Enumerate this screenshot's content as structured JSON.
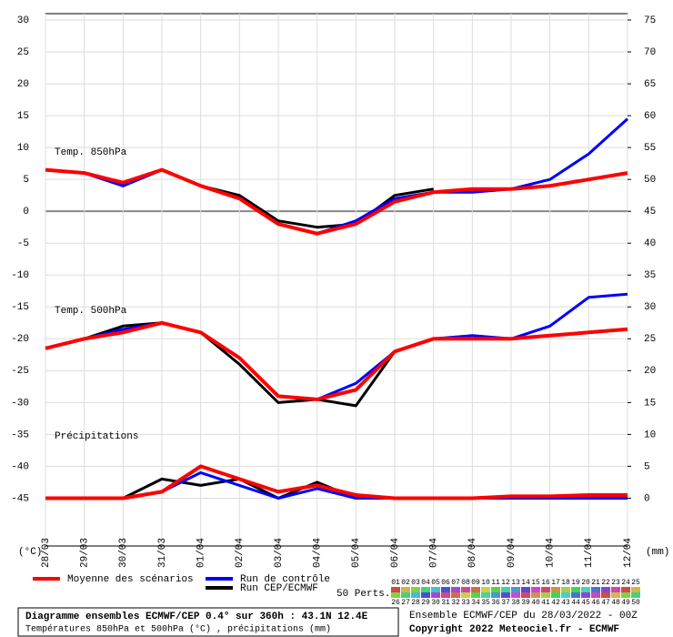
{
  "chart_data": {
    "type": "line",
    "panels": [
      "Temp. 850hPa",
      "Temp. 500hPa",
      "Précipitations"
    ],
    "x": [
      "28/03",
      "29/03",
      "30/03",
      "31/03",
      "01/04",
      "02/04",
      "03/04",
      "04/04",
      "05/04",
      "06/04",
      "07/04",
      "08/04",
      "09/04",
      "10/04",
      "11/04",
      "12/04"
    ],
    "ylim": [
      -52.5,
      31
    ],
    "yticks": [
      -45,
      -40,
      -35,
      -30,
      -25,
      -20,
      -15,
      -10,
      -5,
      0,
      5,
      10,
      15,
      20,
      25,
      30
    ],
    "y2lim": [
      -7.5,
      76
    ],
    "y2ticks": [
      0,
      5,
      10,
      15,
      20,
      25,
      30,
      35,
      40,
      45,
      50,
      55,
      60,
      65,
      70,
      75
    ],
    "ylabel": "(°C)",
    "y2label": "(mm)",
    "grid": true,
    "series": [
      {
        "name": "Moyenne des scénarios",
        "color": "#ff0000",
        "values850": [
          6.5,
          6,
          4.5,
          6.5,
          4,
          2,
          -2,
          -3.5,
          -2,
          1.5,
          3,
          3.5,
          3.5,
          4,
          5,
          6
        ],
        "values500": [
          -21.5,
          -20,
          -19,
          -17.5,
          -19,
          -23,
          -29,
          -29.5,
          -28,
          -22,
          -20,
          -20,
          -20,
          -19.5,
          -19,
          -18.5
        ],
        "precip": [
          0,
          0,
          0,
          1,
          5,
          3,
          1,
          2,
          0.5,
          0,
          0,
          0,
          0.3,
          0.3,
          0.5,
          0.5
        ],
        "axis_precip": "y2"
      },
      {
        "name": "Run de contrôle",
        "color": "#0000ff",
        "values850": [
          6.5,
          6,
          4,
          6.5,
          4,
          2,
          -2,
          -3.5,
          -1.5,
          2,
          3,
          3,
          3.5,
          5,
          9,
          14.5
        ],
        "values500": [
          -21.5,
          -20,
          -18.5,
          -17.5,
          -19,
          -23,
          -29,
          -29.5,
          -27,
          -22,
          -20,
          -19.5,
          -20,
          -18,
          -13.5,
          -13
        ],
        "precip": [
          0,
          0,
          0,
          1,
          4,
          2,
          0,
          1.5,
          0,
          0,
          0,
          0,
          0,
          0,
          0,
          0
        ],
        "axis_precip": "y2"
      },
      {
        "name": "Run CEP/ECMWF",
        "color": "#000000",
        "values850": [
          6.5,
          6,
          4,
          6.5,
          4,
          2.5,
          -1.5,
          -2.5,
          -2,
          2.5,
          3.5,
          null,
          null,
          null,
          null,
          null
        ],
        "values500": [
          -21.5,
          -20,
          -18,
          -17.5,
          -19,
          -24,
          -30,
          -29.5,
          -30.5,
          -22,
          -20,
          null,
          null,
          null,
          null,
          null
        ],
        "precip": [
          0,
          0,
          0,
          3,
          2,
          3,
          0,
          2.5,
          0,
          0,
          0,
          null,
          null,
          null,
          null,
          null
        ],
        "axis_precip": "y2"
      }
    ],
    "perturbations_label": "50 Perts.",
    "perturbations": [
      "01",
      "02",
      "03",
      "04",
      "05",
      "06",
      "07",
      "08",
      "09",
      "10",
      "11",
      "12",
      "13",
      "14",
      "15",
      "16",
      "17",
      "18",
      "19",
      "20",
      "21",
      "22",
      "23",
      "24",
      "25",
      "26",
      "27",
      "28",
      "29",
      "30",
      "31",
      "32",
      "33",
      "34",
      "35",
      "36",
      "37",
      "38",
      "39",
      "40",
      "41",
      "42",
      "43",
      "44",
      "45",
      "46",
      "47",
      "48",
      "49",
      "50"
    ],
    "title": "Diagramme ensembles ECMWF/CEP 0.4° sur 360h : 43.1N 12.4E",
    "subtitle": "Températures 850hPa et 500hPa (°C) , précipitations (mm)",
    "run_info": "Ensemble ECMWF/CEP du 28/03/2022 - 00Z",
    "copyright": "Copyright 2022 Meteociel.fr - ECMWF"
  }
}
